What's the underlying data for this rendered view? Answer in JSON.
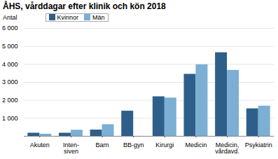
{
  "chart_data": {
    "type": "bar",
    "title": "ÅHS, vårddagar efter klinik och kön 2018",
    "ylabel": "Antal",
    "categories": [
      "Akuten",
      "Inten-\nsiven",
      "Barn",
      "BB-gyn",
      "Kirurgi",
      "Medicin",
      "Medicin,\nvårdavd.",
      "Psykiatrin"
    ],
    "series": [
      {
        "name": "Kvinnor",
        "color": "#2E5F8A",
        "values": [
          175,
          175,
          350,
          1400,
          2200,
          3450,
          4650,
          1530
        ]
      },
      {
        "name": "Män",
        "color": "#7BAFD4",
        "values": [
          120,
          340,
          650,
          0,
          2130,
          3980,
          3670,
          1680
        ]
      }
    ],
    "ylim": [
      0,
      6000
    ],
    "yticks": [
      {
        "value": 1000,
        "label": "1 000"
      },
      {
        "value": 2000,
        "label": "2 000"
      },
      {
        "value": 3000,
        "label": "3 000"
      },
      {
        "value": 4000,
        "label": "4 000"
      },
      {
        "value": 5000,
        "label": "5 000"
      },
      {
        "value": 6000,
        "label": "6 000"
      }
    ],
    "grid": true,
    "legend": "upper left"
  }
}
